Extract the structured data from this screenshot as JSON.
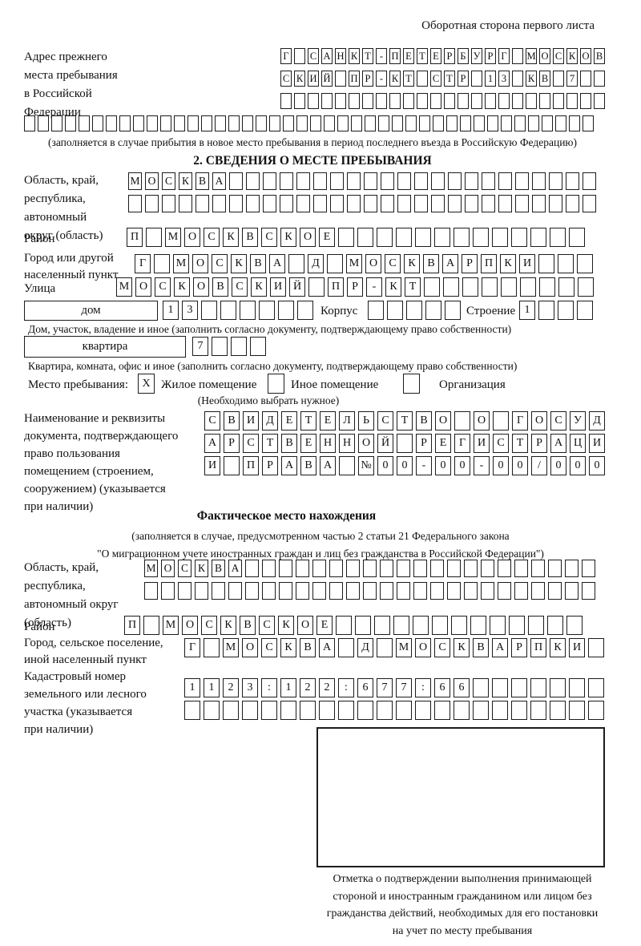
{
  "header": {
    "back_side_note": "Оборотная сторона первого листа"
  },
  "prev_address": {
    "label_lines": [
      "Адрес прежнего",
      "места пребывания",
      "в Российской",
      "Федерации"
    ],
    "rows": [
      {
        "len": 24,
        "text": "Г САНКТ-ПЕТЕРБУРГ МОСКОВ"
      },
      {
        "len": 24,
        "text": "СКИЙ ПР-КТ СТР 13 КВ 7"
      },
      {
        "len": 24,
        "text": ""
      }
    ],
    "extra_row": {
      "len": 42,
      "text": ""
    },
    "note": "(заполняется в случае прибытия в новое место пребывания в период последнего въезда в Российскую Федерацию)"
  },
  "section2": {
    "title": "2. СВЕДЕНИЯ О МЕСТЕ ПРЕБЫВАНИЯ",
    "oblast_label_lines": [
      "Область, край,",
      "республика,",
      "автономный",
      "округ (область)"
    ],
    "oblast_rows": [
      {
        "len": 28,
        "text": "МОСКВА"
      },
      {
        "len": 28,
        "text": ""
      }
    ],
    "raion_label": "Район",
    "raion_row": {
      "len": 24,
      "text": "П МОСКВСКОЕ"
    },
    "gorod_label_lines": [
      "Город или другой",
      "населенный пункт"
    ],
    "gorod_row": {
      "len": 24,
      "text": "Г МОСКВА Д МОСКВАРПКИ"
    },
    "ulitsa_label": "Улица",
    "ulitsa_row": {
      "len": 25,
      "text": "МОСКОВСКИЙ ПР-КТ"
    },
    "dom": {
      "field_label": "дом",
      "row1": {
        "len": 8,
        "text": "13"
      },
      "korpus_label": "Корпус",
      "row2": {
        "len": 5,
        "text": ""
      },
      "stroenie_label": "Строение",
      "row3": {
        "len": 4,
        "text": "1"
      }
    },
    "dom_note": "Дом, участок, владение и иное (заполнить согласно документу, подтверждающему право собственности)",
    "kvartira": {
      "field_label": "квартира",
      "row": {
        "len": 4,
        "text": "7"
      }
    },
    "kvartira_note": "Квартира, комната, офис и иное (заполнить согласно документу, подтверждающему право собственности)",
    "mesto": {
      "label": "Место пребывания:",
      "options": [
        {
          "label": "Жилое помещение",
          "mark": "X"
        },
        {
          "label": "Иное помещение",
          "mark": ""
        },
        {
          "label": "Организация",
          "mark": ""
        }
      ],
      "note": "(Необходимо выбрать нужное)"
    },
    "doc_label_lines": [
      "Наименование и реквизиты",
      "документа, подтверждающего",
      "право пользования",
      "помещением (строением,",
      "сооружением) (указывается",
      "при наличии)"
    ],
    "doc_rows": [
      {
        "len": 21,
        "text": "СВИДЕТЕЛЬСТВО О ГОСУД"
      },
      {
        "len": 21,
        "text": "АРСТВЕННОЙ РЕГИСТРАЦИ"
      },
      {
        "len": 21,
        "text": "И ПРАВА №00-00-00/000"
      }
    ]
  },
  "fact": {
    "title": "Фактическое место нахождения",
    "note_lines": [
      "(заполняется в случае, предусмотренном частью 2 статьи 21 Федерального закона",
      "\"О миграционном учете иностранных граждан и лиц без гражданства в Российской Федерации\")"
    ],
    "oblast_label_lines": [
      "Область, край,",
      "республика,",
      "автономный округ",
      "(область)"
    ],
    "oblast_rows": [
      {
        "len": 27,
        "text": "МОСКВА"
      },
      {
        "len": 27,
        "text": ""
      }
    ],
    "raion_label": "Район",
    "raion_row": {
      "len": 24,
      "text": "П МОСКВСКОЕ"
    },
    "gorod_label_lines": [
      "Город, сельское поселение,",
      "иной населенный пункт"
    ],
    "gorod_row": {
      "len": 22,
      "text": "Г МОСКВА Д МОСКВАРПКИ"
    },
    "kadastr_label_lines": [
      "Кадастровый номер",
      "земельного или лесного",
      "участка (указывается",
      "при наличии)"
    ],
    "kadastr_rows": [
      {
        "len": 22,
        "text": "1123:122:677:66"
      },
      {
        "len": 22,
        "text": ""
      }
    ],
    "stamp_note_lines": [
      "Отметка о подтверждении выполнения принимающей",
      "стороной и иностранным гражданином или лицом без",
      "гражданства действий, необходимых для его постановки",
      "на учет по месту пребывания"
    ]
  }
}
